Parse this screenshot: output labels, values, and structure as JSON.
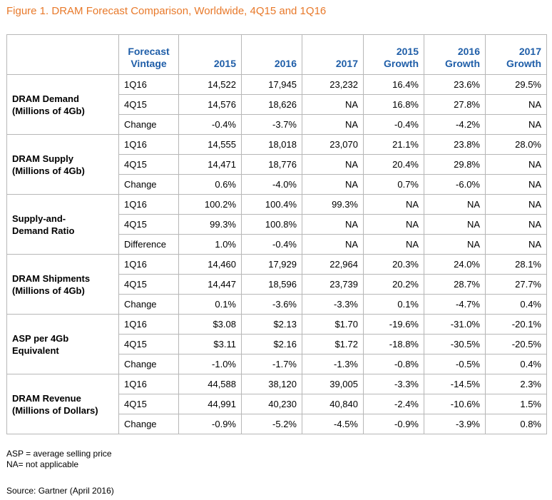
{
  "title": "Figure 1. DRAM Forecast Comparison, Worldwide, 4Q15 and 1Q16",
  "columns": [
    "Forecast\nVintage",
    "2015",
    "2016",
    "2017",
    "2015\nGrowth",
    "2016\nGrowth",
    "2017\nGrowth"
  ],
  "groups": [
    {
      "label": "DRAM Demand\n(Millions of 4Gb)",
      "rows": [
        [
          "1Q16",
          "14,522",
          "17,945",
          "23,232",
          "16.4%",
          "23.6%",
          "29.5%"
        ],
        [
          "4Q15",
          "14,576",
          "18,626",
          "NA",
          "16.8%",
          "27.8%",
          "NA"
        ],
        [
          "Change",
          "-0.4%",
          "-3.7%",
          "NA",
          "-0.4%",
          "-4.2%",
          "NA"
        ]
      ]
    },
    {
      "label": "DRAM Supply\n(Millions of 4Gb)",
      "rows": [
        [
          "1Q16",
          "14,555",
          "18,018",
          "23,070",
          "21.1%",
          "23.8%",
          "28.0%"
        ],
        [
          "4Q15",
          "14,471",
          "18,776",
          "NA",
          "20.4%",
          "29.8%",
          "NA"
        ],
        [
          "Change",
          "0.6%",
          "-4.0%",
          "NA",
          "0.7%",
          "-6.0%",
          "NA"
        ]
      ]
    },
    {
      "label": "Supply-and-\nDemand Ratio",
      "rows": [
        [
          "1Q16",
          "100.2%",
          "100.4%",
          "99.3%",
          "NA",
          "NA",
          "NA"
        ],
        [
          "4Q15",
          "99.3%",
          "100.8%",
          "NA",
          "NA",
          "NA",
          "NA"
        ],
        [
          "Difference",
          "1.0%",
          "-0.4%",
          "NA",
          "NA",
          "NA",
          "NA"
        ]
      ]
    },
    {
      "label": "DRAM Shipments\n(Millions of 4Gb)",
      "rows": [
        [
          "1Q16",
          "14,460",
          "17,929",
          "22,964",
          "20.3%",
          "24.0%",
          "28.1%"
        ],
        [
          "4Q15",
          "14,447",
          "18,596",
          "23,739",
          "20.2%",
          "28.7%",
          "27.7%"
        ],
        [
          "Change",
          "0.1%",
          "-3.6%",
          "-3.3%",
          "0.1%",
          "-4.7%",
          "0.4%"
        ]
      ]
    },
    {
      "label": "ASP per 4Gb\nEquivalent",
      "rows": [
        [
          "1Q16",
          "$3.08",
          "$2.13",
          "$1.70",
          "-19.6%",
          "-31.0%",
          "-20.1%"
        ],
        [
          "4Q15",
          "$3.11",
          "$2.16",
          "$1.72",
          "-18.8%",
          "-30.5%",
          "-20.5%"
        ],
        [
          "Change",
          "-1.0%",
          "-1.7%",
          "-1.3%",
          "-0.8%",
          "-0.5%",
          "0.4%"
        ]
      ]
    },
    {
      "label": "DRAM Revenue\n(Millions of Dollars)",
      "rows": [
        [
          "1Q16",
          "44,588",
          "38,120",
          "39,005",
          "-3.3%",
          "-14.5%",
          "2.3%"
        ],
        [
          "4Q15",
          "44,991",
          "40,230",
          "40,840",
          "-2.4%",
          "-10.6%",
          "1.5%"
        ],
        [
          "Change",
          "-0.9%",
          "-5.2%",
          "-4.5%",
          "-0.9%",
          "-3.9%",
          "0.8%"
        ]
      ]
    }
  ],
  "notes": [
    "ASP = average selling price",
    "NA= not applicable"
  ],
  "source": "Source: Gartner (April 2016)"
}
